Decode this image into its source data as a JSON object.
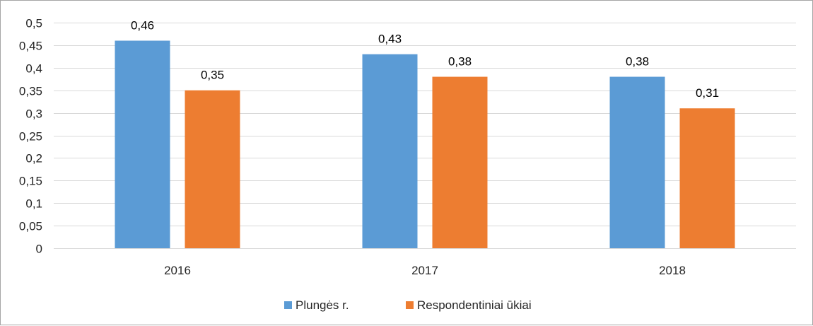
{
  "chart_data": {
    "type": "bar",
    "categories": [
      "2016",
      "2017",
      "2018"
    ],
    "series": [
      {
        "name": "Plungės r.",
        "color": "#5b9bd5",
        "values": [
          0.46,
          0.43,
          0.38
        ],
        "labels": [
          "0,46",
          "0,43",
          "0,38"
        ]
      },
      {
        "name": "Respondentiniai ūkiai",
        "color": "#ed7d31",
        "values": [
          0.35,
          0.38,
          0.31
        ],
        "labels": [
          "0,35",
          "0,38",
          "0,31"
        ]
      }
    ],
    "ylim": [
      0,
      0.5
    ],
    "yticks": [
      0,
      0.05,
      0.1,
      0.15,
      0.2,
      0.25,
      0.3,
      0.35,
      0.4,
      0.45,
      0.5
    ],
    "ytick_labels": [
      "0",
      "0,05",
      "0,1",
      "0,15",
      "0,2",
      "0,25",
      "0,3",
      "0,35",
      "0,4",
      "0,45",
      "0,5"
    ],
    "grid": true,
    "legend_position": "bottom",
    "title": "",
    "xlabel": "",
    "ylabel": ""
  }
}
